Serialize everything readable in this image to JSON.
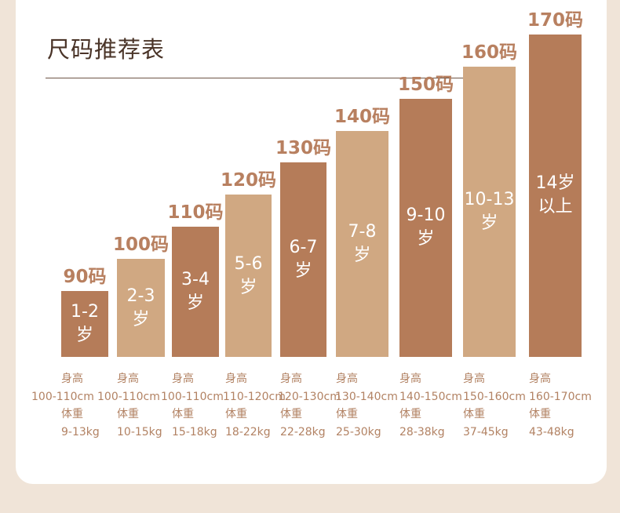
{
  "title": "尺码推荐表",
  "colors": {
    "dark_bar": "#b57c59",
    "light_bar": "#d0a882",
    "label": "#b88060",
    "info": "#b28263",
    "title": "#4a3428",
    "background": "#f0e4d8"
  },
  "labels": {
    "height": "身高",
    "weight": "体重"
  },
  "chart_data": {
    "type": "bar",
    "title": "尺码推荐表",
    "categories": [
      "90码",
      "100码",
      "110码",
      "120码",
      "130码",
      "140码",
      "150码",
      "160码",
      "170码"
    ],
    "age_ranges": [
      "1-2\n岁",
      "2-3\n岁",
      "3-4\n岁",
      "5-6\n岁",
      "6-7\n岁",
      "7-8\n岁",
      "9-10\n岁",
      "10-13\n岁",
      "14岁\n以上"
    ],
    "heights": [
      "100-110cm",
      "100-110cm",
      "100-110cm",
      "110-120cm",
      "120-130cm",
      "130-140cm",
      "140-150cm",
      "150-160cm",
      "160-170cm"
    ],
    "weights": [
      "9-13kg",
      "10-15kg",
      "15-18kg",
      "18-22kg",
      "22-28kg",
      "25-30kg",
      "28-38kg",
      "37-45kg",
      "43-48kg"
    ],
    "values": [
      90,
      100,
      110,
      120,
      130,
      140,
      150,
      160,
      170
    ],
    "ylim": [
      0,
      170
    ],
    "xlabel": "",
    "ylabel": "",
    "grid": false,
    "legend": "none"
  }
}
